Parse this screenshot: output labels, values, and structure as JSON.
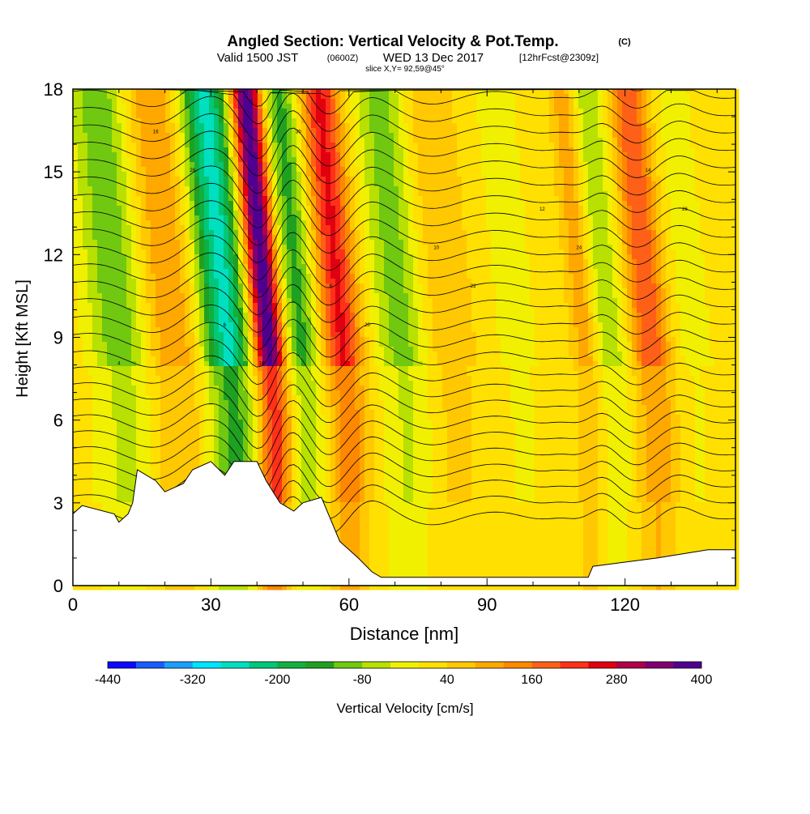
{
  "chart_data": {
    "type": "heatmap",
    "title": "Angled Section: Vertical Velocity & Pot.Temp.",
    "title_unit": "(C)",
    "subtitle_valid": "Valid 1500 JST",
    "subtitle_utc": "(0600Z)",
    "subtitle_date": "WED 13 Dec 2017",
    "subtitle_fcst": "[12hrFcst@2309z]",
    "slice_label": "slice X,Y= 92,59@45°",
    "xlabel": "Distance [nm]",
    "ylabel": "Height [Kft MSL]",
    "xlim": [
      0,
      144
    ],
    "ylim": [
      0,
      18
    ],
    "xticks": [
      "0",
      "30",
      "60",
      "90",
      "120"
    ],
    "yticks": [
      "0",
      "3",
      "6",
      "9",
      "12",
      "15",
      "18"
    ],
    "colorbar_label": "Vertical Velocity [cm/s]",
    "colorbar_ticks": [
      "-440",
      "-320",
      "-200",
      "-80",
      "40",
      "160",
      "280",
      "400"
    ],
    "colorbar_range": [
      -440,
      400
    ],
    "colorbar_colors": [
      "#0a0aff",
      "#1a5cff",
      "#1aa0ff",
      "#00e5ff",
      "#00e0c0",
      "#00c878",
      "#10b040",
      "#20a020",
      "#70c810",
      "#b8e000",
      "#f0f000",
      "#ffe000",
      "#ffc800",
      "#ffa800",
      "#ff8800",
      "#ff6018",
      "#ff3018",
      "#e00010",
      "#b00048",
      "#800070",
      "#500090"
    ],
    "wave_columns": [
      {
        "x": 4,
        "w": 4.5,
        "amp": 10
      },
      {
        "x": 12,
        "w": 5,
        "amp": -140
      },
      {
        "x": 23,
        "w": 5,
        "amp": 110
      },
      {
        "x": 35,
        "w": 4,
        "amp": -280
      },
      {
        "x": 44,
        "w": 2.5,
        "amp": 400
      },
      {
        "x": 51,
        "w": 3,
        "amp": -160
      },
      {
        "x": 60,
        "w": 3,
        "amp": 230
      },
      {
        "x": 73,
        "w": 4,
        "amp": -120
      },
      {
        "x": 83,
        "w": 4,
        "amp": 60
      },
      {
        "x": 98,
        "w": 3,
        "amp": -50
      },
      {
        "x": 113,
        "w": 2,
        "amp": 110
      },
      {
        "x": 118,
        "w": 3.5,
        "amp": -90
      },
      {
        "x": 127,
        "w": 3,
        "amp": 180
      },
      {
        "x": 136,
        "w": 3.5,
        "amp": -40
      }
    ],
    "terrain": [
      [
        0,
        2.6
      ],
      [
        2,
        2.9
      ],
      [
        9,
        2.6
      ],
      [
        10,
        2.3
      ],
      [
        12,
        2.6
      ],
      [
        13,
        3.0
      ],
      [
        14,
        4.2
      ],
      [
        18,
        3.8
      ],
      [
        20,
        3.4
      ],
      [
        24,
        3.7
      ],
      [
        26,
        4.2
      ],
      [
        30,
        4.5
      ],
      [
        33,
        4.0
      ],
      [
        35,
        4.5
      ],
      [
        40,
        4.5
      ],
      [
        42,
        3.8
      ],
      [
        45,
        3.0
      ],
      [
        48,
        2.7
      ],
      [
        50,
        3.0
      ],
      [
        54,
        3.2
      ],
      [
        58,
        1.6
      ],
      [
        62,
        1.0
      ],
      [
        65,
        0.5
      ],
      [
        67,
        0.3
      ],
      [
        112,
        0.3
      ],
      [
        113,
        0.7
      ],
      [
        127,
        1.0
      ],
      [
        138,
        1.3
      ],
      [
        144,
        1.3
      ]
    ],
    "isentrope_count": 28,
    "isentrope_label_values": [
      "4",
      "6",
      "8",
      "10",
      "12",
      "14",
      "16",
      "18",
      "20",
      "22",
      "24",
      "26",
      "28",
      "30"
    ]
  }
}
